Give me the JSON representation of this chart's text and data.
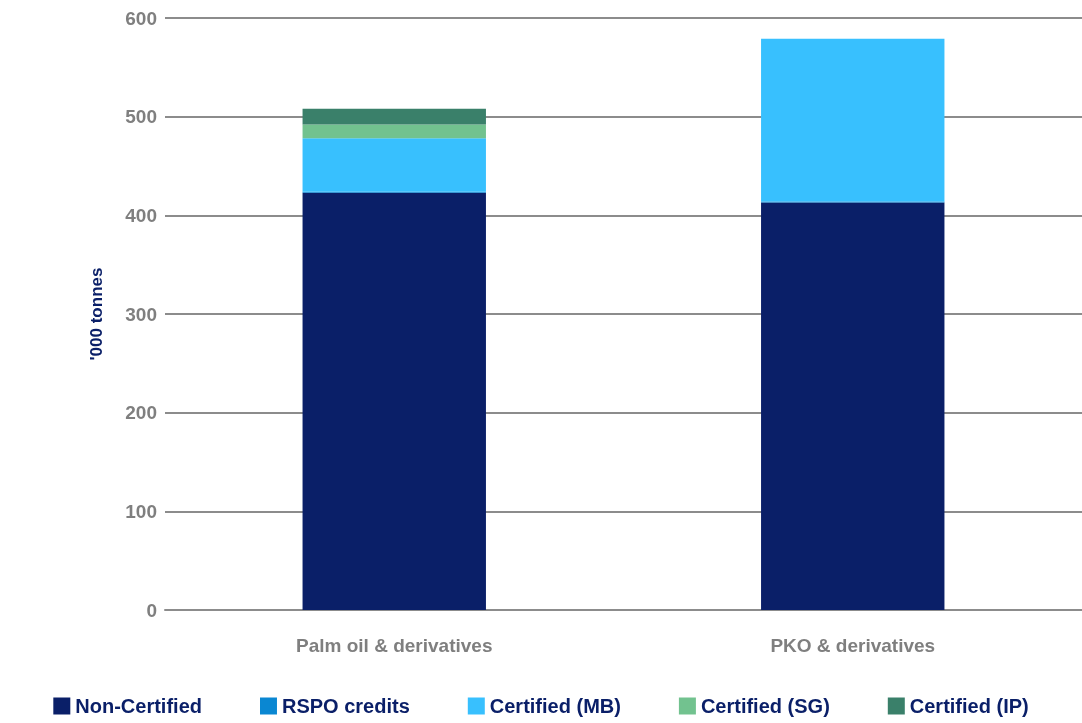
{
  "chart_data": {
    "type": "bar",
    "ylabel": "'000 tonnes",
    "categories": [
      "Palm oil & derivatives",
      "PKO & derivatives"
    ],
    "stacked": true,
    "series": [
      {
        "name": "Non-Certified",
        "color": "#0a1f68",
        "values": [
          423,
          413
        ]
      },
      {
        "name": "RSPO credits",
        "color": "#0a87d2",
        "values": [
          1,
          1
        ]
      },
      {
        "name": "Certified (MB)",
        "color": "#38c0fe",
        "values": [
          54,
          165
        ]
      },
      {
        "name": "Certified (SG)",
        "color": "#72c28f",
        "values": [
          14,
          0
        ]
      },
      {
        "name": "Certified (IP)",
        "color": "#3a806a",
        "values": [
          16,
          0
        ]
      }
    ],
    "ylim": [
      0,
      600
    ],
    "yticks": [
      0,
      100,
      200,
      300,
      400,
      500,
      600
    ],
    "grid": "y",
    "legend": "bottom"
  }
}
